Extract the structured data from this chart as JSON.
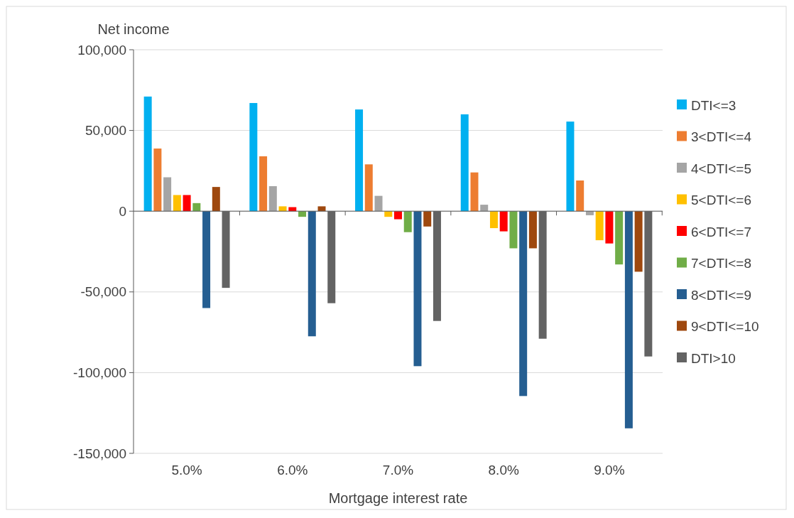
{
  "chart_data": {
    "type": "bar",
    "ylabel": "Net income",
    "xlabel": "Mortgage interest rate",
    "categories": [
      "5.0%",
      "6.0%",
      "7.0%",
      "8.0%",
      "9.0%"
    ],
    "ylim": [
      -150000,
      100000
    ],
    "yticks": [
      {
        "value": -150000,
        "label": "-150,000"
      },
      {
        "value": -100000,
        "label": "-100,000"
      },
      {
        "value": -50000,
        "label": "-50,000"
      },
      {
        "value": 0,
        "label": "0"
      },
      {
        "value": 50000,
        "label": "50,000"
      },
      {
        "value": 100000,
        "label": "100,000"
      }
    ],
    "grid": "y",
    "legend": "right",
    "series": [
      {
        "name": "DTI<=3",
        "color": "#00b0f0",
        "values": [
          71000,
          67000,
          63000,
          60000,
          55500
        ]
      },
      {
        "name": "3<DTI<=4",
        "color": "#ed7d31",
        "values": [
          38800,
          34000,
          29000,
          24000,
          19000
        ]
      },
      {
        "name": "4<DTI<=5",
        "color": "#a5a5a5",
        "values": [
          21000,
          15500,
          9500,
          4000,
          -2500
        ]
      },
      {
        "name": "5<DTI<=6",
        "color": "#ffc000",
        "values": [
          10000,
          3000,
          -3500,
          -10500,
          -18000
        ]
      },
      {
        "name": "6<DTI<=7",
        "color": "#ff0000",
        "values": [
          10000,
          2500,
          -5000,
          -12500,
          -20000
        ]
      },
      {
        "name": "7<DTI<=8",
        "color": "#70ad47",
        "values": [
          5000,
          -3500,
          -13000,
          -23000,
          -33000
        ]
      },
      {
        "name": "8<DTI<=9",
        "color": "#255e91",
        "values": [
          -60000,
          -77500,
          -96000,
          -114500,
          -134500
        ]
      },
      {
        "name": "9<DTI<=10",
        "color": "#9e480e",
        "values": [
          15000,
          3000,
          -9500,
          -23000,
          -37500
        ]
      },
      {
        "name": "DTI>10",
        "color": "#636363",
        "values": [
          -47500,
          -57000,
          -68000,
          -79000,
          -90000
        ]
      }
    ]
  }
}
